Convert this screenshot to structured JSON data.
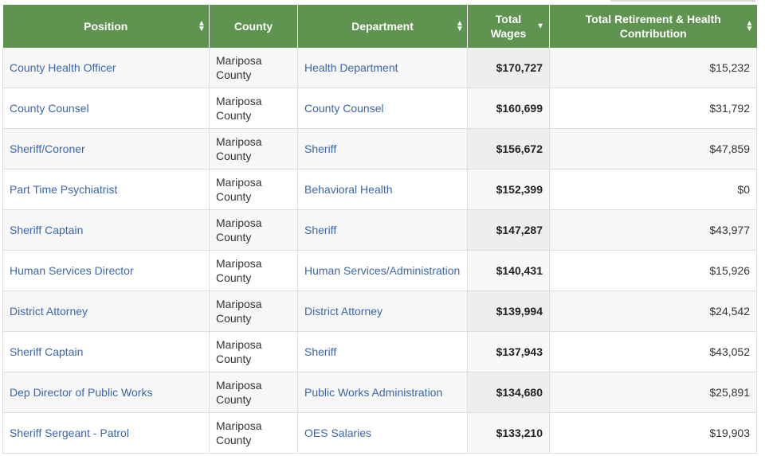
{
  "columns": {
    "position": "Position",
    "county": "County",
    "department": "Department",
    "wages": "Total Wages",
    "contrib": "Total Retirement & Health Contribution"
  },
  "sort_icons": {
    "unsorted": "▲▼",
    "sorted_desc": "▼"
  },
  "colors": {
    "header": "#5f9450",
    "link": "#3b66a8"
  },
  "rows": [
    {
      "position": "County Health Officer",
      "county": "Mariposa County",
      "department": "Health Department",
      "wages": "$170,727",
      "contrib": "$15,232"
    },
    {
      "position": "County Counsel",
      "county": "Mariposa County",
      "department": "County Counsel",
      "wages": "$160,699",
      "contrib": "$31,792"
    },
    {
      "position": "Sheriff/Coroner",
      "county": "Mariposa County",
      "department": "Sheriff",
      "wages": "$156,672",
      "contrib": "$47,859"
    },
    {
      "position": "Part Time Psychiatrist",
      "county": "Mariposa County",
      "department": "Behavioral Health",
      "wages": "$152,399",
      "contrib": "$0"
    },
    {
      "position": "Sheriff Captain",
      "county": "Mariposa County",
      "department": "Sheriff",
      "wages": "$147,287",
      "contrib": "$43,977"
    },
    {
      "position": "Human Services Director",
      "county": "Mariposa County",
      "department": "Human Services/Administration",
      "wages": "$140,431",
      "contrib": "$15,926"
    },
    {
      "position": "District Attorney",
      "county": "Mariposa County",
      "department": "District Attorney",
      "wages": "$139,994",
      "contrib": "$24,542"
    },
    {
      "position": "Sheriff Captain",
      "county": "Mariposa County",
      "department": "Sheriff",
      "wages": "$137,943",
      "contrib": "$43,052"
    },
    {
      "position": "Dep Director of Public Works",
      "county": "Mariposa County",
      "department": "Public Works Administration",
      "wages": "$134,680",
      "contrib": "$25,891"
    },
    {
      "position": "Sheriff Sergeant - Patrol",
      "county": "Mariposa County",
      "department": "OES Salaries",
      "wages": "$133,210",
      "contrib": "$19,903"
    }
  ]
}
